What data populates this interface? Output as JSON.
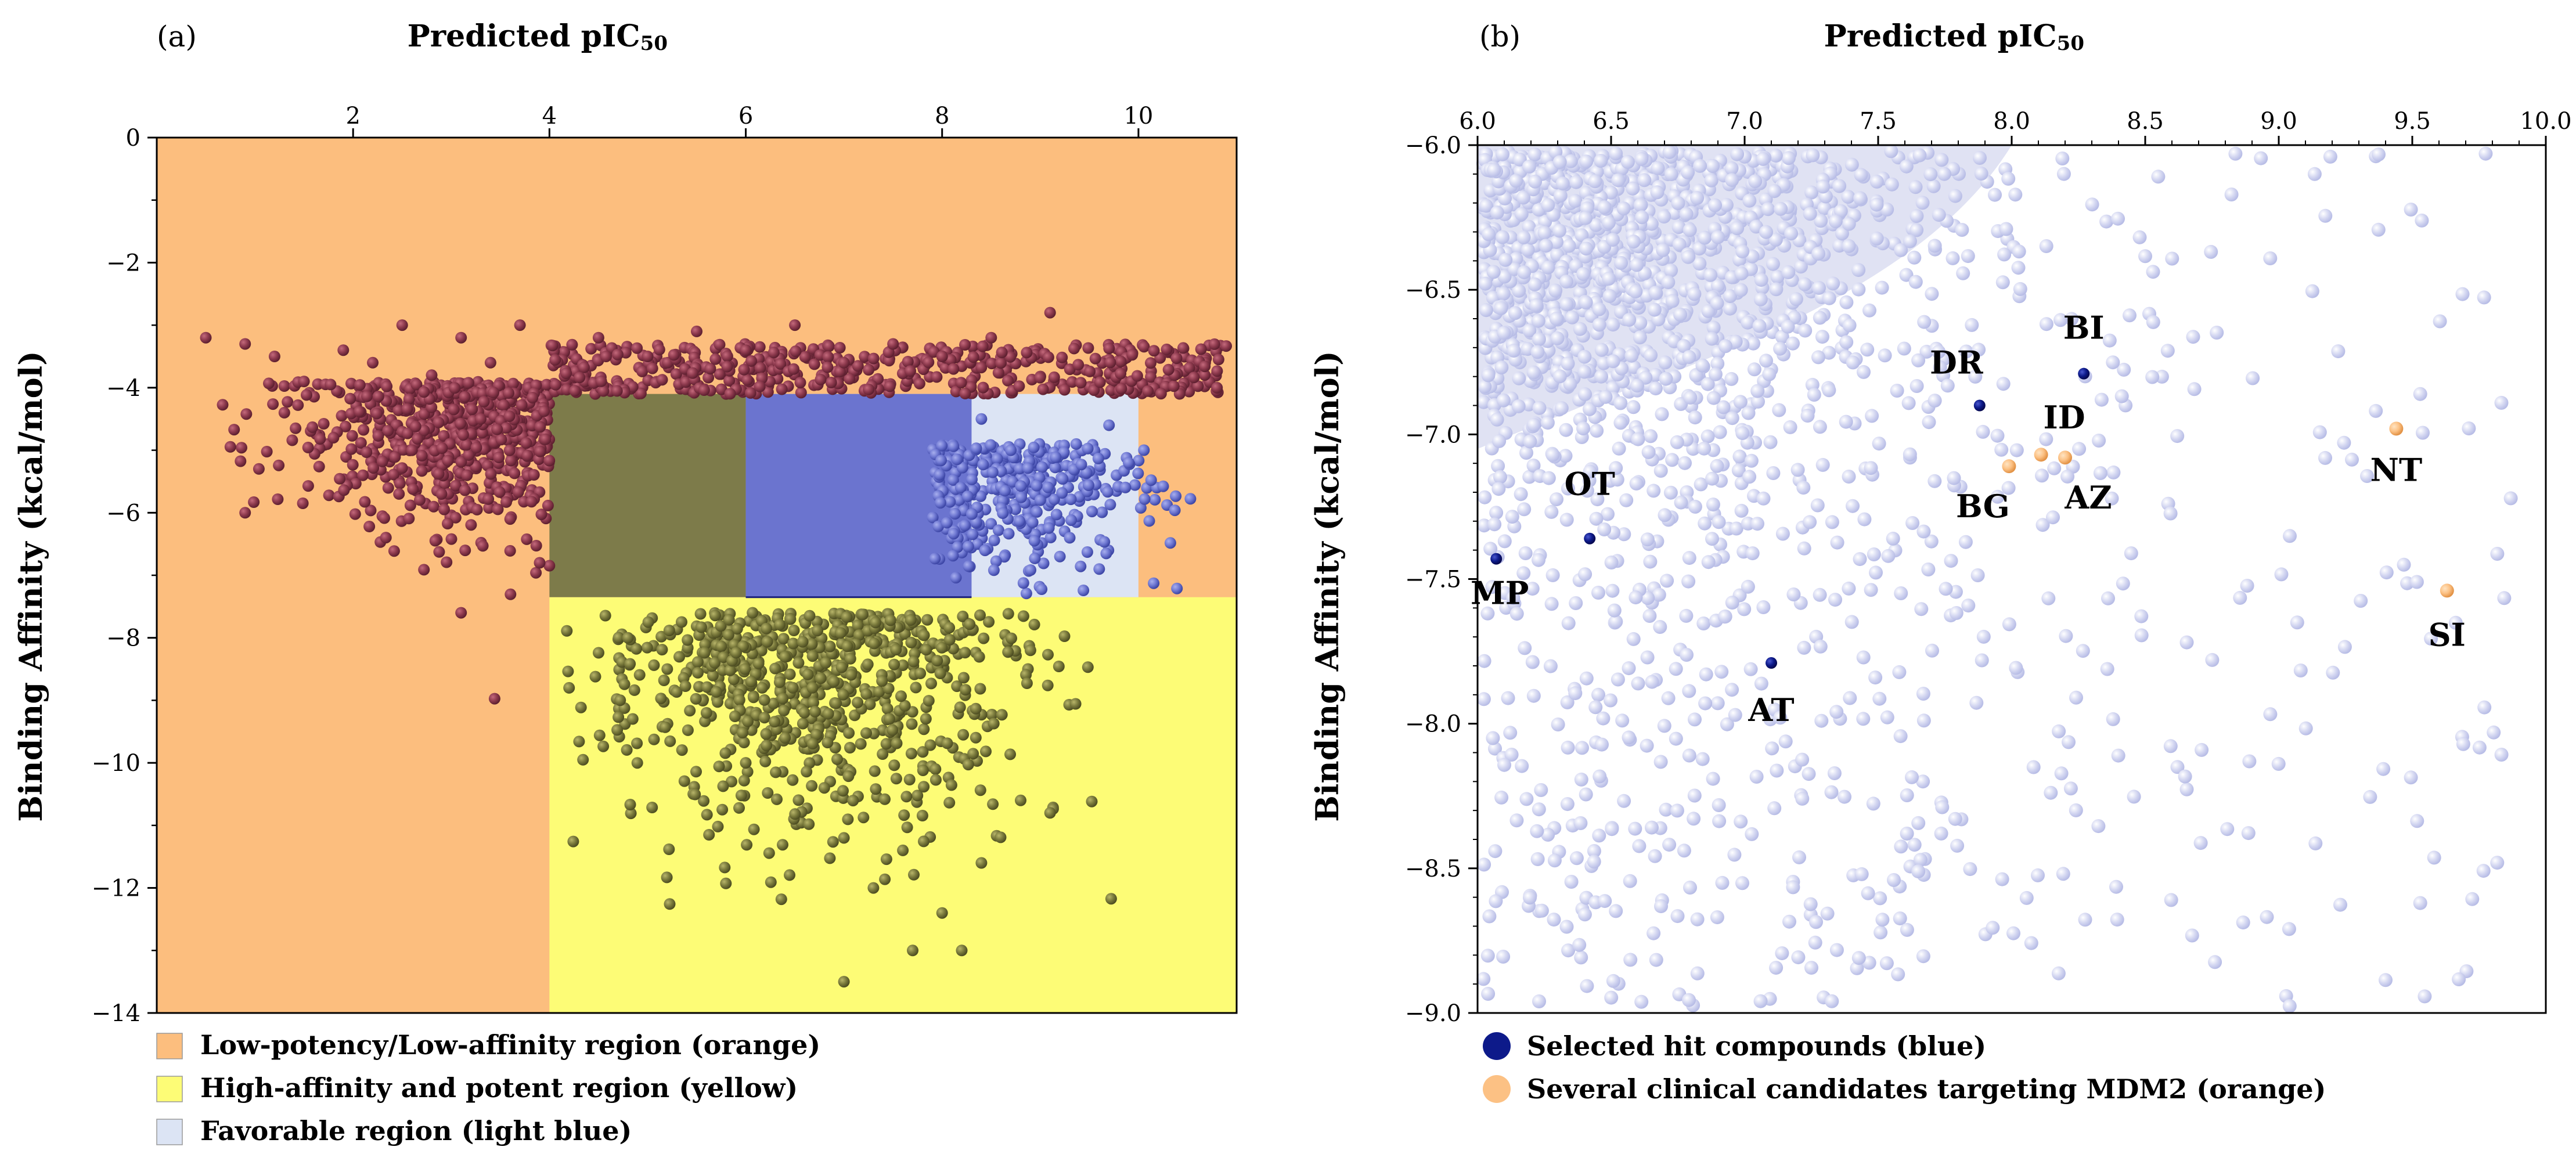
{
  "chart_data": [
    {
      "panel": "(a)",
      "type": "scatter",
      "title": "Predicted pIC50",
      "xlabel": "Predicted pIC50",
      "ylabel": "Binding Affinity (kcal/mol)",
      "xlim": [
        0,
        11
      ],
      "ylim": [
        -14,
        0
      ],
      "xticks": [
        2,
        4,
        6,
        8,
        10
      ],
      "yticks": [
        0,
        -2,
        -4,
        -6,
        -8,
        -10,
        -12,
        -14
      ],
      "x_axis_position": "top",
      "regions": [
        {
          "name": "Low-potency/Low-affinity region (orange)",
          "color": "#fcbe7e",
          "x": [
            0,
            11
          ],
          "y": [
            -14,
            0
          ]
        },
        {
          "name": "High-affinity and potent region (yellow)",
          "color": "#fdfc76",
          "x": [
            4,
            11
          ],
          "y": [
            -14,
            -7.35
          ]
        },
        {
          "name": "Favorable region (light blue)",
          "color": "#dce4f4",
          "x": [
            6,
            10
          ],
          "y": [
            -7.35,
            -4.1
          ]
        }
      ],
      "overlays": [
        {
          "color": "#7d7b4a",
          "x": [
            4,
            6
          ],
          "y": [
            -7.35,
            -4.1
          ]
        },
        {
          "color": "#6b74cf",
          "x": [
            6,
            8.3
          ],
          "y": [
            -7.35,
            -4.1
          ]
        }
      ],
      "series": [
        {
          "color": "#8e3a4e",
          "points": [
            [
              0.5,
              -3.2
            ],
            [
              0.9,
              -3.3
            ],
            [
              1.2,
              -3.5
            ],
            [
              1.5,
              -3.9
            ],
            [
              1.9,
              -3.4
            ],
            [
              2.2,
              -3.6
            ],
            [
              2.5,
              -3.0
            ],
            [
              2.8,
              -3.8
            ],
            [
              3.1,
              -3.2
            ],
            [
              3.4,
              -3.6
            ],
            [
              3.7,
              -3.0
            ],
            [
              1.3,
              -4.4
            ],
            [
              1.8,
              -4.8
            ],
            [
              2.1,
              -5.4
            ],
            [
              2.6,
              -5.0
            ],
            [
              2.9,
              -5.7
            ],
            [
              3.3,
              -4.5
            ],
            [
              3.6,
              -6.1
            ],
            [
              3.9,
              -6.8
            ],
            [
              0.9,
              -6.0
            ],
            [
              3.1,
              -7.6
            ],
            [
              4.5,
              -3.2
            ],
            [
              5.0,
              -3.5
            ],
            [
              5.5,
              -3.1
            ],
            [
              6.0,
              -3.4
            ],
            [
              6.5,
              -3.0
            ],
            [
              7.0,
              -3.6
            ],
            [
              7.5,
              -3.3
            ],
            [
              8.0,
              -3.5
            ],
            [
              8.5,
              -3.2
            ],
            [
              9.1,
              -2.8
            ],
            [
              10.8,
              -4.0
            ]
          ]
        },
        {
          "color": "#7a7a3c",
          "points": [
            [
              4.2,
              -8.8
            ],
            [
              4.8,
              -8.0
            ],
            [
              5.2,
              -8.5
            ],
            [
              5.6,
              -9.2
            ],
            [
              6.0,
              -10.0
            ],
            [
              6.4,
              -9.6
            ],
            [
              6.8,
              -10.4
            ],
            [
              7.0,
              -11.2
            ],
            [
              7.3,
              -12.0
            ],
            [
              7.6,
              -11.4
            ],
            [
              8.0,
              -12.4
            ],
            [
              8.4,
              -11.6
            ],
            [
              8.8,
              -10.6
            ],
            [
              9.1,
              -10.8
            ],
            [
              7.0,
              -13.5
            ],
            [
              7.7,
              -13.0
            ],
            [
              8.2,
              -13.0
            ],
            [
              8.9,
              -8.2
            ]
          ]
        },
        {
          "color": "#6f78d2",
          "points": [
            [
              8.4,
              -4.5
            ],
            [
              8.7,
              -5.0
            ],
            [
              9.0,
              -5.8
            ],
            [
              9.3,
              -6.4
            ],
            [
              9.6,
              -6.9
            ],
            [
              9.9,
              -5.2
            ],
            [
              9.7,
              -4.6
            ],
            [
              9.2,
              -6.7
            ]
          ]
        }
      ]
    },
    {
      "panel": "(b)",
      "type": "scatter",
      "title": "Predicted pIC50",
      "xlabel": "Predicted pIC50",
      "ylabel": "Binding Affinity (kcal/mol)",
      "xlim": [
        6.0,
        10.0
      ],
      "ylim": [
        -9.0,
        -6.0
      ],
      "xticks": [
        6.0,
        6.5,
        7.0,
        7.5,
        8.0,
        8.5,
        9.0,
        9.5,
        10.0
      ],
      "yticks": [
        -6.0,
        -6.5,
        -7.0,
        -7.5,
        -8.0,
        -8.5,
        -9.0
      ],
      "x_axis_position": "top",
      "background_color": "#d5d8ef",
      "labeled_points": [
        {
          "label": "MP",
          "x": 6.07,
          "y": -7.43,
          "group": "hit"
        },
        {
          "label": "OT",
          "x": 6.42,
          "y": -7.36,
          "group": "hit"
        },
        {
          "label": "AT",
          "x": 7.1,
          "y": -7.79,
          "group": "hit"
        },
        {
          "label": "DR",
          "x": 7.88,
          "y": -6.9,
          "group": "hit"
        },
        {
          "label": "BI",
          "x": 8.27,
          "y": -6.79,
          "group": "hit"
        },
        {
          "label": "BG",
          "x": 7.99,
          "y": -7.11,
          "group": "clinical"
        },
        {
          "label": "ID",
          "x": 8.11,
          "y": -7.07,
          "group": "clinical"
        },
        {
          "label": "AZ",
          "x": 8.2,
          "y": -7.08,
          "group": "clinical"
        },
        {
          "label": "NT",
          "x": 9.44,
          "y": -6.98,
          "group": "clinical"
        },
        {
          "label": "SI",
          "x": 9.63,
          "y": -7.54,
          "group": "clinical"
        }
      ],
      "legend": [
        {
          "label": "Selected hit compounds (blue)",
          "color": "#0d1a8a"
        },
        {
          "label": "Several clinical candidates targeting MDM2 (orange)",
          "color": "#fcc184"
        }
      ]
    }
  ],
  "panels": {
    "a": {
      "label": "(a)",
      "title": "Predicted pIC",
      "title_sub": "50",
      "ylabel": "Binding Affinity (kcal/mol)"
    },
    "b": {
      "label": "(b)",
      "title": "Predicted pIC",
      "title_sub": "50",
      "ylabel": "Binding Affinity (kcal/mol)"
    }
  },
  "legend_a": [
    {
      "label": "Low-potency/Low-affinity region (orange)",
      "color": "#fcbe7e"
    },
    {
      "label": "High-affinity and potent region (yellow)",
      "color": "#fdfc76"
    },
    {
      "label": "Favorable region (light blue)",
      "color": "#dce4f4"
    }
  ]
}
